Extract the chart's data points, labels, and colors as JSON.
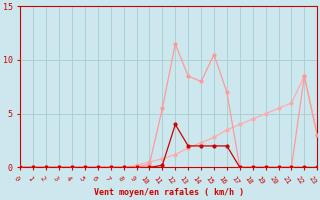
{
  "title": "",
  "xlabel": "Vent moyen/en rafales ( km/h )",
  "ylabel": "",
  "bg_color": "#cce8ee",
  "grid_color": "#aacccc",
  "xlim": [
    0,
    23
  ],
  "ylim": [
    0,
    15
  ],
  "xticks": [
    0,
    1,
    2,
    3,
    4,
    5,
    6,
    7,
    8,
    9,
    10,
    11,
    12,
    13,
    14,
    15,
    16,
    17,
    18,
    19,
    20,
    21,
    22,
    23
  ],
  "yticks": [
    0,
    5,
    10,
    15
  ],
  "line3_x": [
    0,
    1,
    2,
    3,
    4,
    5,
    6,
    7,
    8,
    9,
    10,
    11,
    12,
    13,
    14,
    15,
    16,
    17,
    18,
    19,
    20,
    21,
    22,
    23
  ],
  "line3_y": [
    0,
    0,
    0,
    0,
    0,
    0,
    0,
    0,
    0,
    0.2,
    0.5,
    0.8,
    1.2,
    1.8,
    2.3,
    2.8,
    3.5,
    4.0,
    4.5,
    5.0,
    5.5,
    6.0,
    8.5,
    3.0
  ],
  "line3_color": "#ffaaaa",
  "line2_x": [
    0,
    1,
    2,
    3,
    4,
    5,
    6,
    7,
    8,
    9,
    10,
    11,
    12,
    13,
    14,
    15,
    16,
    17,
    18,
    19,
    20,
    21,
    22,
    23
  ],
  "line2_y": [
    0,
    0,
    0,
    0,
    0,
    0,
    0,
    0,
    0,
    0,
    0.3,
    5.5,
    11.5,
    8.5,
    8.0,
    10.5,
    7.0,
    0,
    0,
    0,
    0,
    0,
    8.5,
    3.0
  ],
  "line2_color": "#ff9999",
  "line1_x": [
    0,
    1,
    2,
    3,
    4,
    5,
    6,
    7,
    8,
    9,
    10,
    11,
    12,
    13,
    14,
    15,
    16,
    17,
    18,
    19,
    20,
    21,
    22,
    23
  ],
  "line1_y": [
    0,
    0,
    0,
    0,
    0,
    0,
    0,
    0,
    0,
    0,
    0,
    0.2,
    4.0,
    2.0,
    2.0,
    2.0,
    2.0,
    0,
    0,
    0,
    0,
    0,
    0,
    0
  ],
  "line1_color": "#cc0000",
  "marker": "o",
  "markersize": 2,
  "linewidth": 0.9
}
